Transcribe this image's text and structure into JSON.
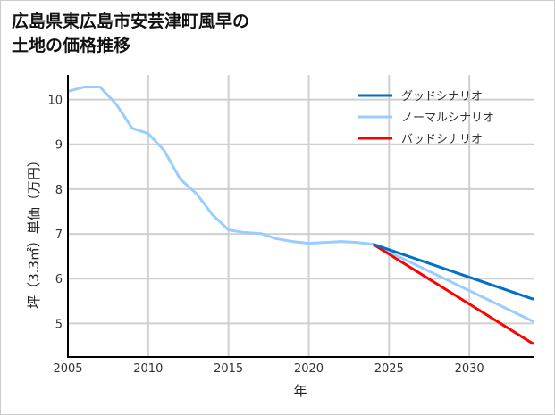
{
  "title_lines": [
    "広島県東広島市安芸津町風早の",
    "土地の価格推移"
  ],
  "chart_data": {
    "type": "line",
    "title": "広島県東広島市安芸津町風早の土地の価格推移",
    "xlabel": "年",
    "ylabel": "坪（3.3㎡）単価（万円）",
    "xlim": [
      2005,
      2034
    ],
    "ylim": [
      4.25,
      10.55
    ],
    "xticks": [
      2005,
      2010,
      2015,
      2020,
      2025,
      2030
    ],
    "yticks": [
      5,
      6,
      7,
      8,
      9,
      10
    ],
    "grid": true,
    "legend_position": "top-right",
    "series": [
      {
        "name": "グッドシナリオ",
        "color": "#0070c8",
        "x": [
          2024,
          2034
        ],
        "values": [
          6.77,
          5.54
        ]
      },
      {
        "name": "ノーマルシナリオ",
        "color": "#99ccff",
        "x": [
          2005,
          2006,
          2007,
          2008,
          2009,
          2010,
          2011,
          2012,
          2013,
          2014,
          2015,
          2016,
          2017,
          2018,
          2019,
          2020,
          2021,
          2022,
          2023,
          2024,
          2034
        ],
        "values": [
          10.18,
          10.28,
          10.28,
          9.9,
          9.36,
          9.24,
          8.86,
          8.22,
          7.9,
          7.43,
          7.09,
          7.03,
          7.01,
          6.89,
          6.83,
          6.79,
          6.81,
          6.83,
          6.81,
          6.77,
          5.04
        ]
      },
      {
        "name": "バッドシナリオ",
        "color": "#ff0000",
        "x": [
          2024,
          2034
        ],
        "values": [
          6.77,
          4.54
        ]
      }
    ]
  }
}
